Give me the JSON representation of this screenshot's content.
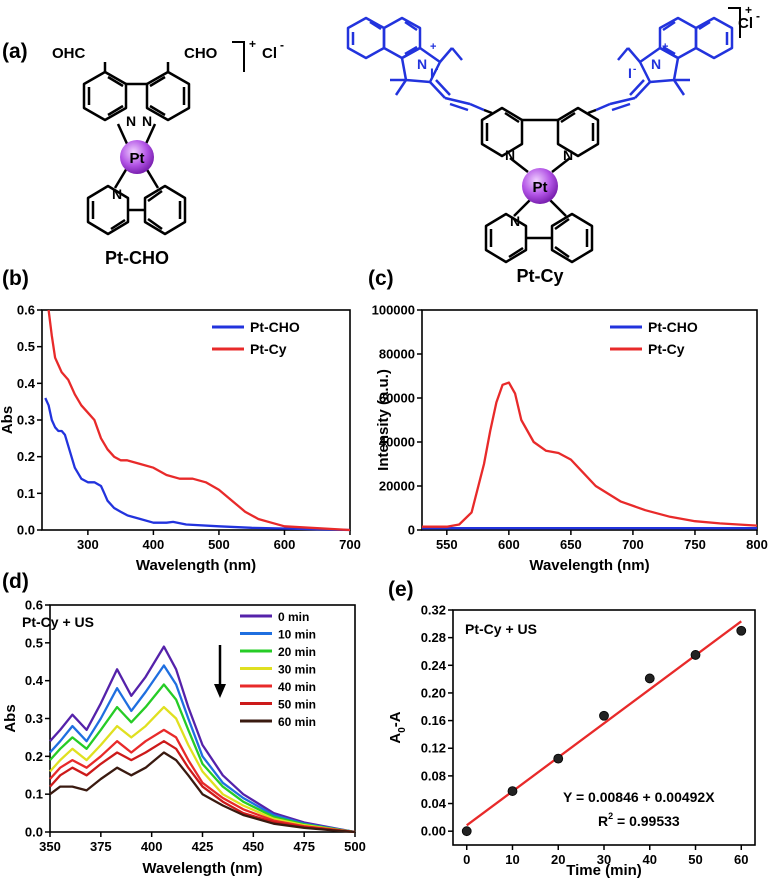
{
  "panels": {
    "a": "(a)",
    "b": "(b)",
    "c": "(c)",
    "d": "(d)",
    "e": "(e)"
  },
  "molecules": {
    "ptcho": {
      "name": "Pt-CHO",
      "charge": "+",
      "counterion": "Cl",
      "counterion_charge": "-",
      "aldehyde_left": "OHC",
      "aldehyde_right": "CHO",
      "metal": "Pt",
      "N": "N"
    },
    "ptcy": {
      "name": "Pt-Cy",
      "charge": "+",
      "counterion": "Cl",
      "counterion_charge": "-",
      "metal": "Pt",
      "N": "N",
      "iodide": "I",
      "iodide_charge": "-",
      "cation_charge": "+"
    }
  },
  "colors": {
    "blue": "#2233dd",
    "red": "#e82a2a",
    "pt_sphere": "#b355e6",
    "cy_blue": "#2233dd"
  },
  "chart_data": [
    {
      "id": "b",
      "type": "line",
      "xlabel": "Wavelength (nm)",
      "ylabel": "Abs",
      "xlim": [
        230,
        700
      ],
      "ylim": [
        0.0,
        0.6
      ],
      "xticks": [
        300,
        400,
        500,
        600,
        700
      ],
      "yticks": [
        0.0,
        0.1,
        0.2,
        0.3,
        0.4,
        0.5,
        0.6
      ],
      "legend_position": "top-right",
      "series": [
        {
          "name": "Pt-CHO",
          "color": "#2233dd",
          "x": [
            235,
            240,
            245,
            250,
            255,
            260,
            265,
            270,
            275,
            280,
            290,
            300,
            310,
            320,
            325,
            330,
            340,
            350,
            360,
            380,
            400,
            420,
            430,
            450,
            500,
            550,
            600,
            650,
            700
          ],
          "y": [
            0.36,
            0.34,
            0.3,
            0.28,
            0.27,
            0.27,
            0.26,
            0.23,
            0.2,
            0.17,
            0.14,
            0.13,
            0.13,
            0.12,
            0.1,
            0.08,
            0.06,
            0.05,
            0.04,
            0.03,
            0.02,
            0.02,
            0.022,
            0.015,
            0.01,
            0.006,
            0.004,
            0.002,
            0.0
          ]
        },
        {
          "name": "Pt-Cy",
          "color": "#e82a2a",
          "x": [
            240,
            245,
            250,
            255,
            260,
            270,
            280,
            290,
            300,
            310,
            320,
            330,
            340,
            350,
            360,
            380,
            400,
            420,
            440,
            460,
            480,
            500,
            520,
            540,
            560,
            580,
            600,
            650,
            700
          ],
          "y": [
            0.6,
            0.53,
            0.47,
            0.45,
            0.43,
            0.41,
            0.37,
            0.34,
            0.32,
            0.3,
            0.25,
            0.22,
            0.2,
            0.19,
            0.19,
            0.18,
            0.17,
            0.15,
            0.14,
            0.14,
            0.13,
            0.11,
            0.08,
            0.05,
            0.03,
            0.02,
            0.01,
            0.005,
            0.0
          ]
        }
      ]
    },
    {
      "id": "c",
      "type": "line",
      "xlabel": "Wavelength (nm)",
      "ylabel": "Intensity (a.u.)",
      "xlim": [
        530,
        800
      ],
      "ylim": [
        0,
        100000
      ],
      "xticks": [
        550,
        600,
        650,
        700,
        750,
        800
      ],
      "yticks": [
        0,
        20000,
        40000,
        60000,
        80000,
        100000
      ],
      "legend_position": "top-right",
      "series": [
        {
          "name": "Pt-CHO",
          "color": "#2233dd",
          "x": [
            530,
            800
          ],
          "y": [
            800,
            800
          ]
        },
        {
          "name": "Pt-Cy",
          "color": "#e82a2a",
          "x": [
            530,
            550,
            560,
            570,
            580,
            585,
            590,
            595,
            600,
            605,
            610,
            620,
            630,
            640,
            650,
            660,
            670,
            690,
            710,
            730,
            750,
            770,
            800
          ],
          "y": [
            1500,
            1500,
            2500,
            8000,
            30000,
            45000,
            58000,
            66000,
            67000,
            62000,
            50000,
            40000,
            36000,
            35000,
            32000,
            26000,
            20000,
            13000,
            9000,
            6000,
            4000,
            3000,
            2000
          ]
        }
      ]
    },
    {
      "id": "d",
      "type": "line",
      "xlabel": "Wavelength (nm)",
      "ylabel": "Abs",
      "annotation": "Pt-Cy + US",
      "xlim": [
        350,
        500
      ],
      "ylim": [
        0.0,
        0.6
      ],
      "xticks": [
        350,
        375,
        400,
        425,
        450,
        475,
        500
      ],
      "yticks": [
        0.0,
        0.1,
        0.2,
        0.3,
        0.4,
        0.5,
        0.6
      ],
      "legend_position": "top-right",
      "x": [
        350,
        355,
        361,
        368,
        375,
        383,
        390,
        397,
        406,
        412,
        418,
        425,
        435,
        445,
        460,
        475,
        490,
        500
      ],
      "series": [
        {
          "name": "0 min",
          "color": "#5522aa",
          "y": [
            0.24,
            0.27,
            0.31,
            0.27,
            0.34,
            0.43,
            0.36,
            0.41,
            0.49,
            0.43,
            0.33,
            0.23,
            0.15,
            0.1,
            0.05,
            0.025,
            0.01,
            0.0
          ]
        },
        {
          "name": "10 min",
          "color": "#1f6fe0",
          "y": [
            0.21,
            0.24,
            0.28,
            0.24,
            0.3,
            0.38,
            0.32,
            0.37,
            0.44,
            0.39,
            0.3,
            0.2,
            0.13,
            0.09,
            0.045,
            0.022,
            0.009,
            0.0
          ]
        },
        {
          "name": "20 min",
          "color": "#26cc26",
          "y": [
            0.19,
            0.22,
            0.25,
            0.22,
            0.27,
            0.33,
            0.29,
            0.33,
            0.39,
            0.35,
            0.27,
            0.18,
            0.12,
            0.08,
            0.04,
            0.02,
            0.008,
            0.0
          ]
        },
        {
          "name": "30 min",
          "color": "#e0e020",
          "y": [
            0.16,
            0.19,
            0.22,
            0.19,
            0.23,
            0.28,
            0.25,
            0.28,
            0.33,
            0.3,
            0.23,
            0.16,
            0.1,
            0.07,
            0.035,
            0.018,
            0.007,
            0.0
          ]
        },
        {
          "name": "40 min",
          "color": "#e82a2a",
          "y": [
            0.14,
            0.17,
            0.19,
            0.17,
            0.2,
            0.24,
            0.21,
            0.24,
            0.27,
            0.25,
            0.19,
            0.13,
            0.09,
            0.06,
            0.03,
            0.015,
            0.006,
            0.0
          ]
        },
        {
          "name": "50 min",
          "color": "#cc1a1a",
          "y": [
            0.12,
            0.15,
            0.17,
            0.15,
            0.18,
            0.21,
            0.19,
            0.21,
            0.24,
            0.22,
            0.17,
            0.12,
            0.08,
            0.05,
            0.026,
            0.013,
            0.005,
            0.0
          ]
        },
        {
          "name": "60 min",
          "color": "#3a1a10",
          "y": [
            0.1,
            0.12,
            0.12,
            0.11,
            0.14,
            0.17,
            0.15,
            0.17,
            0.21,
            0.19,
            0.15,
            0.1,
            0.07,
            0.045,
            0.022,
            0.011,
            0.004,
            0.0
          ]
        }
      ]
    },
    {
      "id": "e",
      "type": "scatter",
      "xlabel": "Time (min)",
      "ylabel_main": "A",
      "ylabel_sub": "0",
      "ylabel_rest": "-A",
      "annotation": "Pt-Cy + US",
      "equation": "Y = 0.00846 + 0.00492X",
      "r2_label": "R",
      "r2_sup": "2",
      "r2_value": " = 0.99533",
      "xlim": [
        -3,
        63
      ],
      "ylim": [
        -0.02,
        0.32
      ],
      "xticks": [
        0,
        10,
        20,
        30,
        40,
        50,
        60
      ],
      "yticks": [
        0.0,
        0.04,
        0.08,
        0.12,
        0.16,
        0.2,
        0.24,
        0.28,
        0.32
      ],
      "ytick_labels": [
        "0.00",
        "0.04",
        "0.08",
        "0.12",
        "0.16",
        "0.20",
        "0.24",
        "0.28",
        "0.32"
      ],
      "points": {
        "x": [
          0,
          10,
          20,
          30,
          40,
          50,
          60
        ],
        "y": [
          0.0,
          0.058,
          0.105,
          0.167,
          0.221,
          0.255,
          0.29
        ]
      },
      "fit": {
        "intercept": 0.00846,
        "slope": 0.00492,
        "color": "#e82a2a"
      }
    }
  ]
}
